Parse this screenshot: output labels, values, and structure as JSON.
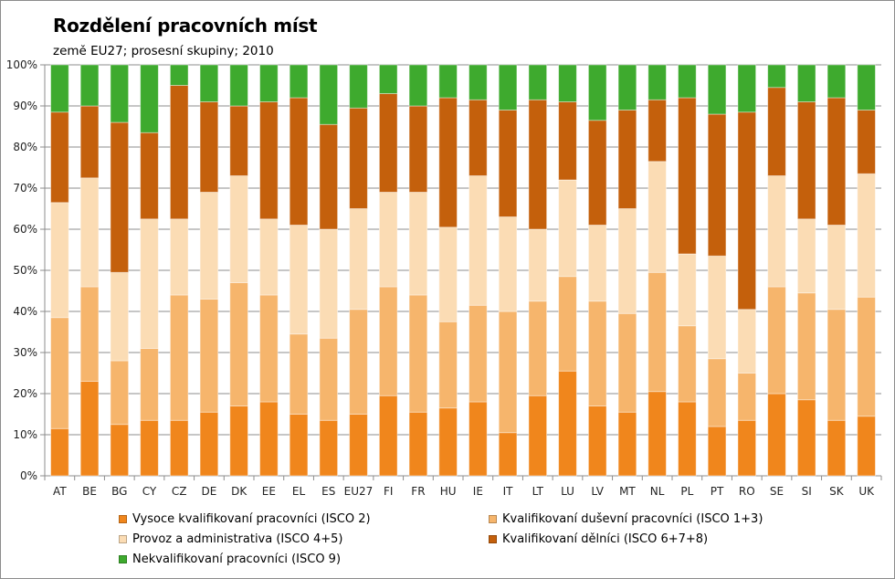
{
  "chart_data": {
    "type": "bar",
    "stacked": true,
    "title": "Rozdělení pracovních míst",
    "subtitle": "země EU27; prosesní skupiny; 2010",
    "ylim": [
      0,
      100
    ],
    "y_ticks": [
      "0%",
      "10%",
      "20%",
      "30%",
      "40%",
      "50%",
      "60%",
      "70%",
      "80%",
      "90%",
      "100%"
    ],
    "grid": true,
    "legend_position": "bottom",
    "categories": [
      "AT",
      "BE",
      "BG",
      "CY",
      "CZ",
      "DE",
      "DK",
      "EE",
      "EL",
      "ES",
      "EU27",
      "FI",
      "FR",
      "HU",
      "IE",
      "IT",
      "LT",
      "LU",
      "LV",
      "MT",
      "NL",
      "PL",
      "PT",
      "RO",
      "SE",
      "SI",
      "SK",
      "UK"
    ],
    "series": [
      {
        "name": "Vysoce kvalifikovaní pracovníci (ISCO 2)",
        "color": "#f0861c",
        "values": [
          11.5,
          23,
          12.5,
          13.5,
          13.5,
          15.5,
          17,
          18,
          15,
          13.5,
          15,
          19.5,
          15.5,
          16.5,
          18,
          10.5,
          19.5,
          25.5,
          17,
          15.5,
          20.5,
          18,
          12,
          13.5,
          20,
          18.5,
          13.5,
          14.5
        ]
      },
      {
        "name": "Kvalifikovaní duševní pracovníci (ISCO 1+3)",
        "color": "#f6b56c",
        "values": [
          27,
          23,
          15.5,
          17.5,
          30.5,
          27.5,
          30,
          26,
          19.5,
          20,
          25.5,
          26.5,
          28.5,
          21,
          23.5,
          29.5,
          23,
          23,
          25.5,
          24,
          29,
          18.5,
          16.5,
          11.5,
          26,
          26,
          27,
          29
        ]
      },
      {
        "name": "Provoz a administrativa (ISCO 4+5)",
        "color": "#fbdcb4",
        "values": [
          28,
          26.5,
          21.5,
          31.5,
          18.5,
          26,
          26,
          18.5,
          26.5,
          26.5,
          24.5,
          23,
          25,
          23,
          31.5,
          23,
          17.5,
          23.5,
          18.5,
          25.5,
          27,
          17.5,
          25,
          15.5,
          27,
          18,
          20.5,
          30
        ]
      },
      {
        "name": "Kvalifikovaní dělníci (ISCO 6+7+8)",
        "color": "#c4600c",
        "values": [
          22,
          17.5,
          36.5,
          21,
          32.5,
          22,
          17,
          28.5,
          31,
          25.5,
          24.5,
          24,
          21,
          31.5,
          18.5,
          26,
          31.5,
          19,
          25.5,
          24,
          15,
          38,
          34.5,
          48,
          21.5,
          28.5,
          31,
          15.5
        ]
      },
      {
        "name": "Nekvalifikovaní pracovníci (ISCO 9)",
        "color": "#3eaa2e",
        "values": [
          11.5,
          10,
          14,
          16.5,
          5,
          9,
          10,
          9,
          8,
          14.5,
          10.5,
          7,
          10,
          8,
          8.5,
          11,
          8.5,
          9,
          13.5,
          11,
          8.5,
          8,
          12,
          11.5,
          5.5,
          9,
          8,
          11
        ]
      }
    ]
  }
}
